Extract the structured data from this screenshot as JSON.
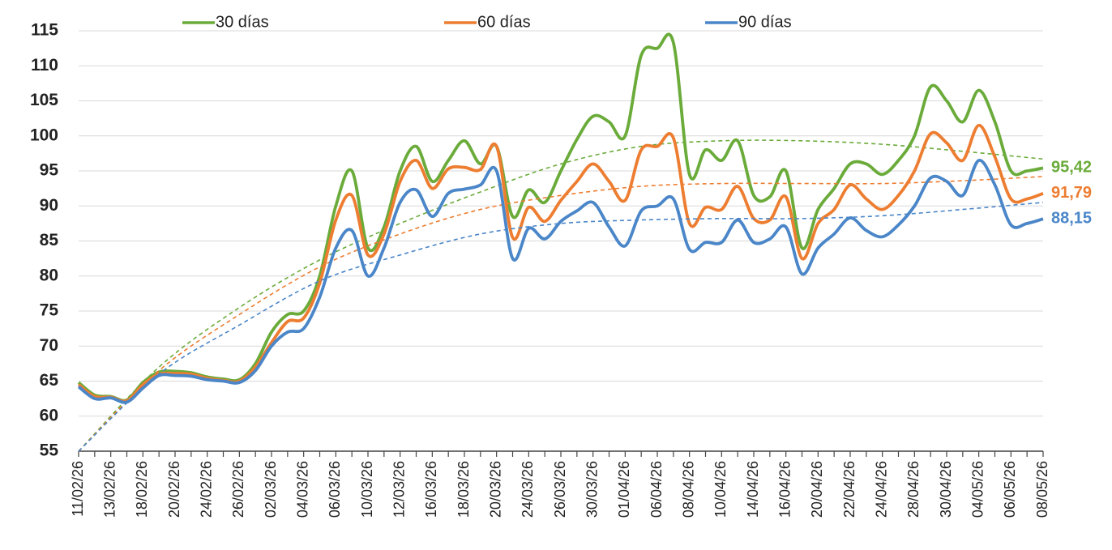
{
  "chart_data": {
    "type": "line",
    "categories": [
      "11/02/26",
      null,
      "13/02/26",
      null,
      "18/02/26",
      null,
      "20/02/26",
      null,
      "24/02/26",
      null,
      "26/02/26",
      null,
      "02/03/26",
      null,
      "04/03/26",
      null,
      "06/03/26",
      null,
      "10/03/26",
      null,
      "12/03/26",
      null,
      "16/03/26",
      null,
      "18/03/26",
      null,
      "20/03/26",
      null,
      "24/03/26",
      null,
      "26/03/26",
      null,
      "30/03/26",
      null,
      "01/04/26",
      null,
      "06/04/26",
      null,
      "08/04/26",
      null,
      "10/04/26",
      null,
      "14/04/26",
      null,
      "16/04/26",
      null,
      "20/04/26",
      null,
      "22/04/26",
      null,
      "24/04/26",
      null,
      "28/04/26",
      null,
      "30/04/26",
      null,
      "04/05/26",
      null,
      "06/05/26",
      null,
      "08/05/26"
    ],
    "series": [
      {
        "name": "30 días",
        "color": "#6aab3a",
        "last_label": "95,42",
        "values": [
          64.8,
          63,
          62.8,
          62.3,
          64.8,
          66.3,
          66.4,
          66.2,
          65.6,
          65.3,
          65.2,
          67.5,
          72,
          74.5,
          75,
          80,
          90,
          95,
          84,
          87,
          95,
          98.5,
          93.5,
          96.5,
          99.3,
          96,
          98.5,
          88.5,
          92.3,
          90.5,
          95,
          99.5,
          102.8,
          102,
          100,
          111.5,
          112.5,
          113.3,
          94.5,
          98,
          96.5,
          99.3,
          91.5,
          91.3,
          95,
          84,
          89.5,
          92.5,
          96,
          96,
          94.5,
          96.5,
          100,
          107,
          105,
          102,
          106.5,
          102,
          95,
          95,
          95.42
        ],
        "trend": {
          "x": [
            0,
            5,
            10,
            15,
            20,
            25,
            30,
            35,
            40,
            45,
            50,
            55,
            60
          ],
          "values": [
            55,
            67,
            75.5,
            82.3,
            87.5,
            92,
            96,
            98.5,
            99.3,
            99.3,
            98.8,
            97.8,
            96.7
          ]
        }
      },
      {
        "name": "60 días",
        "color": "#ed7d31",
        "last_label": "91,79",
        "values": [
          64.5,
          62.8,
          62.7,
          62.2,
          64.5,
          66,
          66.1,
          66,
          65.4,
          65.1,
          65,
          67,
          70.5,
          73.5,
          74,
          79,
          88,
          91.5,
          83,
          86,
          93.5,
          96.5,
          92.5,
          95.3,
          95.5,
          95.2,
          98.5,
          85.5,
          89.8,
          87.8,
          90.8,
          93.5,
          96,
          93.5,
          90.8,
          98,
          98.5,
          99.7,
          87.5,
          89.8,
          89.5,
          92.8,
          88.2,
          88,
          91.3,
          82.5,
          87.5,
          89.5,
          93,
          91,
          89.5,
          91.5,
          95,
          100.3,
          99,
          96.5,
          101.5,
          97,
          91,
          91,
          91.79
        ],
        "trend": {
          "x": [
            0,
            5,
            10,
            15,
            20,
            25,
            30,
            35,
            40,
            45,
            50,
            55,
            60
          ],
          "values": [
            55,
            66.5,
            74.5,
            81.3,
            86,
            89.5,
            91.5,
            92.8,
            93.2,
            93.2,
            93.2,
            93.6,
            94.2
          ]
        }
      },
      {
        "name": "90 días",
        "color": "#4a86c8",
        "last_label": "88,15",
        "values": [
          64.2,
          62.5,
          62.6,
          62,
          64,
          65.8,
          65.8,
          65.7,
          65.2,
          65,
          64.8,
          66.5,
          70,
          72,
          72.5,
          77,
          84,
          86.5,
          80,
          84,
          90.5,
          92.3,
          88.5,
          91.8,
          92.4,
          93,
          95,
          82.5,
          86.8,
          85.3,
          87.8,
          89.3,
          90.5,
          87,
          84.3,
          89.3,
          90,
          91,
          83.8,
          84.8,
          84.8,
          88,
          84.8,
          85.3,
          87,
          80.3,
          84,
          86,
          88.3,
          86.5,
          85.6,
          87.3,
          90,
          94,
          93.5,
          91.5,
          96.5,
          93,
          87.3,
          87.5,
          88.15
        ],
        "trend": {
          "x": [
            0,
            5,
            10,
            15,
            20,
            25,
            30,
            35,
            40,
            45,
            50,
            55,
            60
          ],
          "values": [
            55,
            66,
            73,
            79.3,
            83,
            86,
            87.5,
            88,
            88.2,
            88.2,
            88.6,
            89.5,
            90.5
          ]
        }
      }
    ],
    "ylim": [
      55,
      115
    ],
    "yticks": [
      55,
      60,
      65,
      70,
      75,
      80,
      85,
      90,
      95,
      100,
      105,
      110,
      115
    ],
    "grid": true,
    "legend": "top"
  }
}
